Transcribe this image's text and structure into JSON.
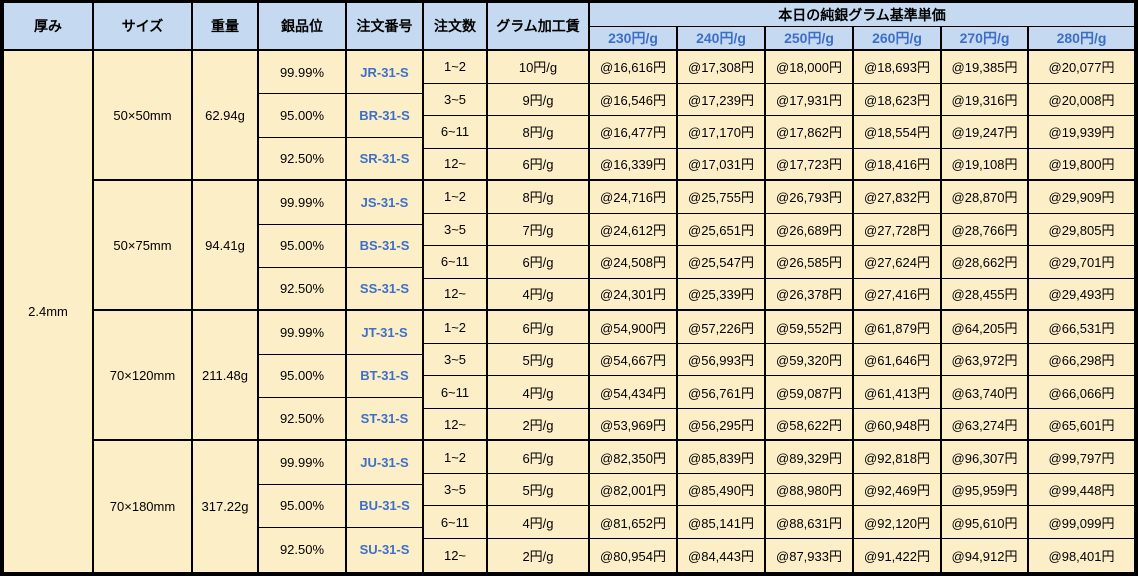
{
  "table": {
    "colors": {
      "header_bg": "#C5DAF0",
      "cell_bg": "#FCEFC8",
      "accent_blue": "#3E6FC8",
      "border": "#000000"
    },
    "header": {
      "columns": [
        "厚み",
        "サイズ",
        "重量",
        "銀品位",
        "注文番号",
        "注文数",
        "グラム加工賃"
      ],
      "price_group_title": "本日の純銀グラム基準単価",
      "price_columns": [
        "230円/g",
        "240円/g",
        "250円/g",
        "260円/g",
        "270円/g",
        "280円/g"
      ]
    },
    "thickness": "2.4mm",
    "blocks": [
      {
        "size": "50×50mm",
        "weight": "62.94g",
        "purities": [
          {
            "purity": "99.99%",
            "order_no": "JR-31-S"
          },
          {
            "purity": "95.00%",
            "order_no": "BR-31-S"
          },
          {
            "purity": "92.50%",
            "order_no": "SR-31-S"
          }
        ],
        "rows": [
          {
            "qty": "1~2",
            "fee": "10円/g",
            "prices": [
              "@16,616円",
              "@17,308円",
              "@18,000円",
              "@18,693円",
              "@19,385円",
              "@20,077円"
            ]
          },
          {
            "qty": "3~5",
            "fee": "9円/g",
            "prices": [
              "@16,546円",
              "@17,239円",
              "@17,931円",
              "@18,623円",
              "@19,316円",
              "@20,008円"
            ]
          },
          {
            "qty": "6~11",
            "fee": "8円/g",
            "prices": [
              "@16,477円",
              "@17,170円",
              "@17,862円",
              "@18,554円",
              "@19,247円",
              "@19,939円"
            ]
          },
          {
            "qty": "12~",
            "fee": "6円/g",
            "prices": [
              "@16,339円",
              "@17,031円",
              "@17,723円",
              "@18,416円",
              "@19,108円",
              "@19,800円"
            ]
          }
        ]
      },
      {
        "size": "50×75mm",
        "weight": "94.41g",
        "purities": [
          {
            "purity": "99.99%",
            "order_no": "JS-31-S"
          },
          {
            "purity": "95.00%",
            "order_no": "BS-31-S"
          },
          {
            "purity": "92.50%",
            "order_no": "SS-31-S"
          }
        ],
        "rows": [
          {
            "qty": "1~2",
            "fee": "8円/g",
            "prices": [
              "@24,716円",
              "@25,755円",
              "@26,793円",
              "@27,832円",
              "@28,870円",
              "@29,909円"
            ]
          },
          {
            "qty": "3~5",
            "fee": "7円/g",
            "prices": [
              "@24,612円",
              "@25,651円",
              "@26,689円",
              "@27,728円",
              "@28,766円",
              "@29,805円"
            ]
          },
          {
            "qty": "6~11",
            "fee": "6円/g",
            "prices": [
              "@24,508円",
              "@25,547円",
              "@26,585円",
              "@27,624円",
              "@28,662円",
              "@29,701円"
            ]
          },
          {
            "qty": "12~",
            "fee": "4円/g",
            "prices": [
              "@24,301円",
              "@25,339円",
              "@26,378円",
              "@27,416円",
              "@28,455円",
              "@29,493円"
            ]
          }
        ]
      },
      {
        "size": "70×120mm",
        "weight": "211.48g",
        "purities": [
          {
            "purity": "99.99%",
            "order_no": "JT-31-S"
          },
          {
            "purity": "95.00%",
            "order_no": "BT-31-S"
          },
          {
            "purity": "92.50%",
            "order_no": "ST-31-S"
          }
        ],
        "rows": [
          {
            "qty": "1~2",
            "fee": "6円/g",
            "prices": [
              "@54,900円",
              "@57,226円",
              "@59,552円",
              "@61,879円",
              "@64,205円",
              "@66,531円"
            ]
          },
          {
            "qty": "3~5",
            "fee": "5円/g",
            "prices": [
              "@54,667円",
              "@56,993円",
              "@59,320円",
              "@61,646円",
              "@63,972円",
              "@66,298円"
            ]
          },
          {
            "qty": "6~11",
            "fee": "4円/g",
            "prices": [
              "@54,434円",
              "@56,761円",
              "@59,087円",
              "@61,413円",
              "@63,740円",
              "@66,066円"
            ]
          },
          {
            "qty": "12~",
            "fee": "2円/g",
            "prices": [
              "@53,969円",
              "@56,295円",
              "@58,622円",
              "@60,948円",
              "@63,274円",
              "@65,601円"
            ]
          }
        ]
      },
      {
        "size": "70×180mm",
        "weight": "317.22g",
        "purities": [
          {
            "purity": "99.99%",
            "order_no": "JU-31-S"
          },
          {
            "purity": "95.00%",
            "order_no": "BU-31-S"
          },
          {
            "purity": "92.50%",
            "order_no": "SU-31-S"
          }
        ],
        "rows": [
          {
            "qty": "1~2",
            "fee": "6円/g",
            "prices": [
              "@82,350円",
              "@85,839円",
              "@89,329円",
              "@92,818円",
              "@96,307円",
              "@99,797円"
            ]
          },
          {
            "qty": "3~5",
            "fee": "5円/g",
            "prices": [
              "@82,001円",
              "@85,490円",
              "@88,980円",
              "@92,469円",
              "@95,959円",
              "@99,448円"
            ]
          },
          {
            "qty": "6~11",
            "fee": "4円/g",
            "prices": [
              "@81,652円",
              "@85,141円",
              "@88,631円",
              "@92,120円",
              "@95,610円",
              "@99,099円"
            ]
          },
          {
            "qty": "12~",
            "fee": "2円/g",
            "prices": [
              "@80,954円",
              "@84,443円",
              "@87,933円",
              "@91,422円",
              "@94,912円",
              "@98,401円"
            ]
          }
        ]
      }
    ]
  }
}
